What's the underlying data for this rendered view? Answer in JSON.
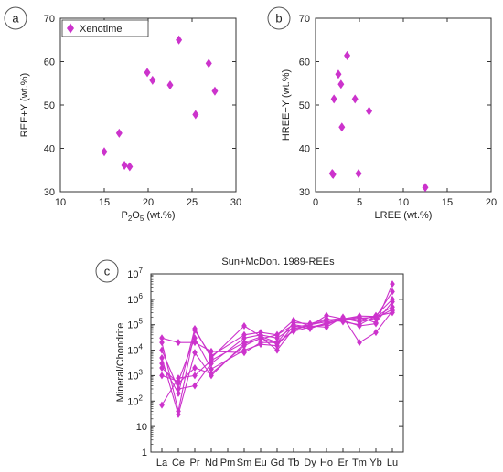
{
  "colors": {
    "marker": "#cc33cc",
    "axis": "#333333",
    "panel_label_stroke": "#555555"
  },
  "chart_data": [
    {
      "panel_label": "a",
      "type": "scatter",
      "xlabel": "P2O5 (wt.%)",
      "xlabel_parts": {
        "pre": "P",
        "sub1": "2",
        "mid": "O",
        "sub2": "5",
        "post": " (wt.%)"
      },
      "ylabel": "REE+Y (wt.%)",
      "xlim": [
        10,
        30
      ],
      "ylim": [
        30,
        70
      ],
      "xticks": [
        "10",
        "15",
        "20",
        "25",
        "30"
      ],
      "yticks": [
        "30",
        "40",
        "50",
        "60",
        "70"
      ],
      "legend": {
        "entry": "Xenotime",
        "placement": "top-left"
      },
      "series": [
        {
          "name": "Xenotime",
          "points": [
            [
              15.0,
              39.2
            ],
            [
              16.7,
              43.5
            ],
            [
              17.3,
              36.1
            ],
            [
              17.9,
              35.8
            ],
            [
              19.9,
              57.5
            ],
            [
              20.5,
              55.7
            ],
            [
              22.5,
              54.6
            ],
            [
              23.5,
              65.0
            ],
            [
              25.4,
              47.8
            ],
            [
              26.9,
              59.6
            ],
            [
              27.6,
              53.2
            ]
          ]
        }
      ]
    },
    {
      "panel_label": "b",
      "type": "scatter",
      "xlabel": "LREE (wt.%)",
      "ylabel": "HREE+Y (wt.%)",
      "xlim": [
        0,
        20
      ],
      "ylim": [
        30,
        70
      ],
      "xticks": [
        "0",
        "5",
        "10",
        "15",
        "20"
      ],
      "yticks": [
        "30",
        "40",
        "50",
        "60",
        "70"
      ],
      "series": [
        {
          "points": [
            [
              1.9,
              34.2
            ],
            [
              2.0,
              34.0
            ],
            [
              2.1,
              51.4
            ],
            [
              2.6,
              57.1
            ],
            [
              2.9,
              54.8
            ],
            [
              3.0,
              44.9
            ],
            [
              3.6,
              61.4
            ],
            [
              4.5,
              51.4
            ],
            [
              4.9,
              34.2
            ],
            [
              6.1,
              48.6
            ],
            [
              12.5,
              31.0
            ]
          ]
        }
      ]
    },
    {
      "panel_label": "c",
      "type": "line",
      "title": "Sun+McDon. 1989-REEs",
      "ylabel": "Mineral/Chondrite",
      "scale": "log",
      "ylim_exp": [
        0,
        7
      ],
      "yticks": [
        {
          "base": "1",
          "exp": ""
        },
        {
          "base": "10",
          "exp": ""
        },
        {
          "base": "10",
          "exp": "2"
        },
        {
          "base": "10",
          "exp": "3"
        },
        {
          "base": "10",
          "exp": "4"
        },
        {
          "base": "10",
          "exp": "5"
        },
        {
          "base": "10",
          "exp": "6"
        },
        {
          "base": "10",
          "exp": "7"
        }
      ],
      "categories": [
        "La",
        "Ce",
        "Pr",
        "Nd",
        "Pm",
        "Sm",
        "Eu",
        "Gd",
        "Tb",
        "Dy",
        "Ho",
        "Er",
        "Tm",
        "Yb",
        "Lu"
      ],
      "series": [
        {
          "values": [
            20000,
            40,
            60000,
            6000,
            null,
            40000,
            50000,
            40000,
            150000,
            90000,
            230000,
            170000,
            220000,
            210000,
            500000
          ]
        },
        {
          "values": [
            1000,
            600,
            30000,
            1800,
            null,
            10000,
            17000,
            15000,
            90000,
            70000,
            120000,
            150000,
            90000,
            110000,
            4000000
          ]
        },
        {
          "values": [
            5000,
            30,
            8000,
            1000,
            null,
            18000,
            28000,
            40000,
            100000,
            80000,
            110000,
            160000,
            180000,
            200000,
            2000000
          ]
        },
        {
          "values": [
            70,
            800,
            1000,
            4000,
            null,
            20000,
            33000,
            10000,
            70000,
            90000,
            80000,
            200000,
            20000,
            50000,
            350000
          ]
        },
        {
          "values": [
            30000,
            20000,
            20000,
            9000,
            null,
            8000,
            20000,
            20000,
            55000,
            80000,
            100000,
            180000,
            130000,
            180000,
            400000
          ]
        },
        {
          "values": [
            10000,
            300,
            400,
            3000,
            null,
            30000,
            40000,
            30000,
            80000,
            100000,
            150000,
            180000,
            150000,
            230000,
            1000000
          ]
        },
        {
          "values": [
            3000,
            200,
            70000,
            5000,
            null,
            90000,
            35000,
            20000,
            120000,
            110000,
            170000,
            130000,
            100000,
            220000,
            300000
          ]
        },
        {
          "values": [
            2000,
            500,
            2000,
            1200,
            null,
            15000,
            30000,
            18000,
            60000,
            100000,
            130000,
            170000,
            200000,
            120000,
            800000
          ]
        }
      ]
    }
  ]
}
